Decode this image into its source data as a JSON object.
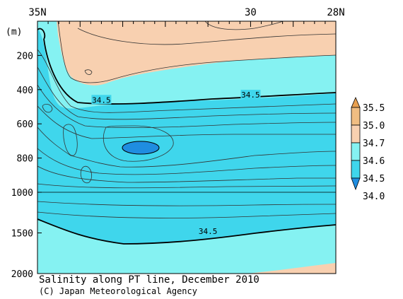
{
  "chart_data": {
    "type": "heatmap",
    "title": "Salinity along PT line, December 2010",
    "credit": "(C) Japan Meteorological Agency",
    "y_unit_label": "(m)",
    "x_ticks": [
      {
        "lat": 35,
        "label": "35N"
      },
      {
        "lat": 30,
        "label": "30"
      },
      {
        "lat": 28,
        "label": "28N"
      }
    ],
    "xlim": [
      35,
      28
    ],
    "y_ticks": [
      {
        "depth": 200,
        "label": "200"
      },
      {
        "depth": 400,
        "label": "400"
      },
      {
        "depth": 600,
        "label": "600"
      },
      {
        "depth": 800,
        "label": "800"
      },
      {
        "depth": 1000,
        "label": "1000"
      },
      {
        "depth": 1500,
        "label": "1500"
      },
      {
        "depth": 2000,
        "label": "2000"
      }
    ],
    "ylim": [
      0,
      2000
    ],
    "y_scale_note": "upper panel 0-1000 m linear, lower panel 1000-2000 m compressed",
    "contour_labels": [
      {
        "lat": 33.5,
        "depth": 460,
        "label": "34.5"
      },
      {
        "lat": 30.0,
        "depth": 430,
        "label": "34.5"
      },
      {
        "lat": 31.0,
        "depth": 1480,
        "label": "34.5"
      }
    ],
    "colorbar": {
      "labels": [
        "35.5",
        "35.0",
        "34.7",
        "34.6",
        "34.5",
        "34.0"
      ],
      "colors": [
        "#e8a050",
        "#f0bd82",
        "#f8d0b0",
        "#85f2f2",
        "#3fd6ec",
        "#1f8de0"
      ]
    },
    "regions": {
      "high_salinity_color": "#f8d0b0",
      "mid_color": "#3fd6ec",
      "low_core_color": "#1f8de0",
      "deep_color": "#85f2f2"
    }
  }
}
